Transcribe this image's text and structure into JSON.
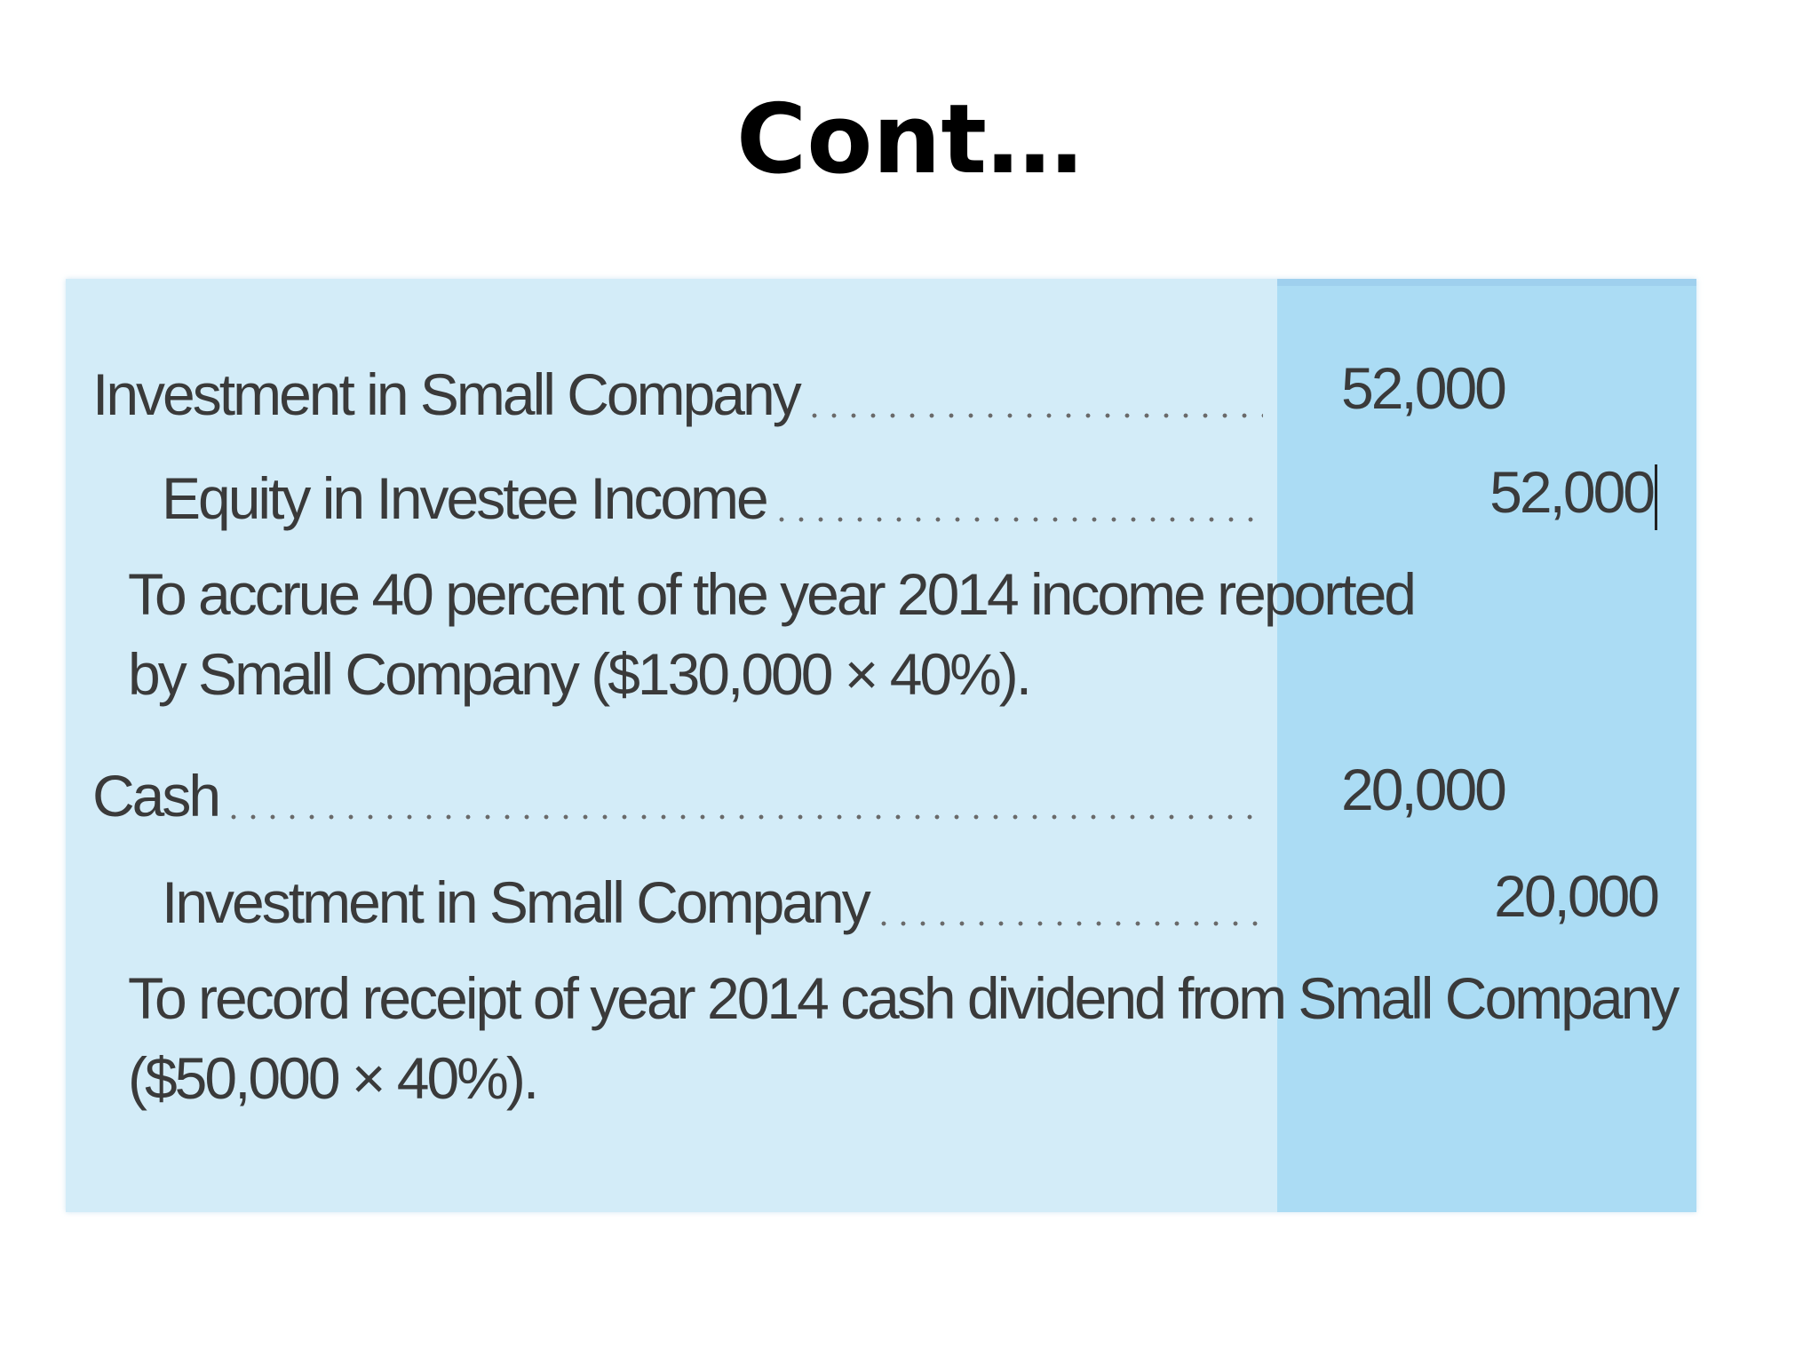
{
  "slide": {
    "title": "Cont…"
  },
  "journal": {
    "entries": [
      {
        "lines": [
          {
            "account": "Investment in Small Company",
            "debit": "52,000",
            "credit": ""
          },
          {
            "account": "Equity in Investee Income",
            "debit": "",
            "credit": "52,000"
          }
        ],
        "explanation": [
          "To accrue 40 percent of the year 2014 income reported",
          "by Small Company ($130,000 × 40%)."
        ]
      },
      {
        "lines": [
          {
            "account": "Cash",
            "debit": "20,000",
            "credit": ""
          },
          {
            "account": "Investment in Small Company",
            "debit": "",
            "credit": "20,000"
          }
        ],
        "explanation": [
          "To record receipt of year 2014 cash dividend from Small Company",
          "($50,000 × 40%)."
        ]
      }
    ]
  }
}
